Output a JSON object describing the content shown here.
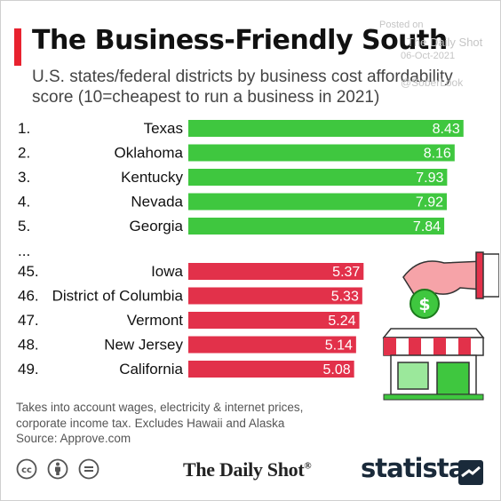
{
  "header": {
    "title": "The Business-Friendly South",
    "subtitle": "U.S. states/federal districts by business cost affordability score (10=cheapest to run a business in 2021)"
  },
  "watermark": {
    "posted": "Posted on",
    "source": "The Daily Shot",
    "date": "06-Oct-2021",
    "handle": "@SoberLook"
  },
  "chart_data": {
    "type": "bar",
    "orientation": "horizontal",
    "xlim": [
      0,
      8.6
    ],
    "ellipsis": "...",
    "colors": {
      "top": "#3fc73f",
      "bottom": "#e2314a"
    },
    "top": [
      {
        "rank": "1.",
        "name": "Texas",
        "value": 8.43
      },
      {
        "rank": "2.",
        "name": "Oklahoma",
        "value": 8.16
      },
      {
        "rank": "3.",
        "name": "Kentucky",
        "value": 7.93
      },
      {
        "rank": "4.",
        "name": "Nevada",
        "value": 7.92
      },
      {
        "rank": "5.",
        "name": "Georgia",
        "value": 7.84
      }
    ],
    "bottom": [
      {
        "rank": "45.",
        "name": "Iowa",
        "value": 5.37
      },
      {
        "rank": "46.",
        "name": "District of Columbia",
        "value": 5.33
      },
      {
        "rank": "47.",
        "name": "Vermont",
        "value": 5.24
      },
      {
        "rank": "48.",
        "name": "New Jersey",
        "value": 5.14
      },
      {
        "rank": "49.",
        "name": "California",
        "value": 5.08
      }
    ]
  },
  "footer": {
    "note": "Takes into account wages, electricity & internet prices, corporate income tax. Excludes Hawaii and Alaska",
    "source": "Source: Approve.com",
    "license_icons": [
      "cc-icon",
      "attribution-icon",
      "no-derivatives-icon"
    ],
    "dailyshot": "The Daily Shot",
    "dailyshot_mark": "®",
    "statista": "statista"
  }
}
